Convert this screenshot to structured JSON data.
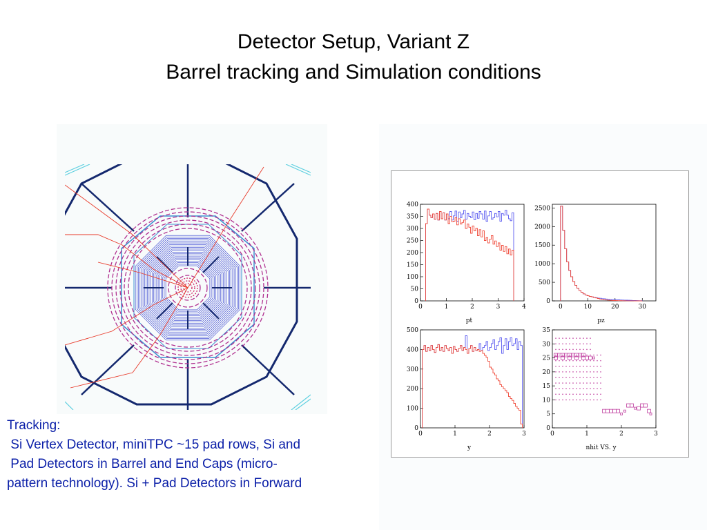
{
  "title": {
    "line1": "Detector Setup, Variant Z",
    "line2": "Barrel tracking and Simulation conditions"
  },
  "tracking_text": [
    "Tracking:",
    " Si Vertex Detector, miniTPC ~15 pad rows, Si and",
    " Pad Detectors in Barrel and End Caps (micro-",
    "pattern technology). Si + Pad Detectors in Forward"
  ],
  "colors": {
    "text_blue": "#0b1fa8",
    "series_all": "#5a5af0",
    "series_sel": "#f04a3a",
    "overlap": "#8a2a8a",
    "scatter": "#c040a0",
    "detector_frame": "#14286e",
    "detector_outer": "#3a8fd0",
    "track": "#e83a2a"
  },
  "chart_data": [
    {
      "type": "histogram",
      "xlabel": "pt",
      "xlim": [
        0,
        4
      ],
      "ylim": [
        0,
        400
      ],
      "xticks": [
        "0",
        "1",
        "2",
        "3",
        "4"
      ],
      "yticks": [
        "0",
        "50",
        "100",
        "150",
        "200",
        "250",
        "300",
        "350",
        "400"
      ],
      "x_range": [
        0.2,
        3.6
      ],
      "series": [
        {
          "values": [
            320,
            380,
            355,
            345,
            360,
            338,
            362,
            335,
            370,
            340,
            365,
            335,
            360,
            340,
            370,
            335,
            352,
            372,
            330,
            368,
            345,
            360,
            375,
            338,
            362,
            350,
            345,
            368,
            336,
            362,
            342,
            370,
            360,
            338,
            372,
            330,
            352,
            370,
            338,
            345,
            362,
            348,
            370,
            330,
            362,
            355,
            375,
            355,
            340,
            332,
            365
          ]
        },
        {
          "values": [
            320,
            380,
            355,
            345,
            360,
            338,
            362,
            335,
            370,
            340,
            365,
            335,
            360,
            320,
            350,
            328,
            330,
            345,
            315,
            340,
            318,
            325,
            335,
            300,
            318,
            305,
            280,
            310,
            290,
            300,
            270,
            295,
            265,
            290,
            250,
            262,
            240,
            255,
            270,
            235,
            248,
            225,
            240,
            210,
            230,
            205,
            225,
            195,
            215,
            190,
            210
          ]
        }
      ]
    },
    {
      "type": "histogram",
      "xlabel": "pz",
      "xlim": [
        -3,
        35
      ],
      "ylim": [
        0,
        2600
      ],
      "xticks": [
        "0",
        "10",
        "20",
        "30"
      ],
      "yticks": [
        "0",
        "500",
        "1000",
        "1500",
        "2000",
        "2500"
      ],
      "x_range": [
        0,
        30
      ],
      "series": [
        {
          "values": [
            2550,
            1900,
            1400,
            1050,
            820,
            650,
            520,
            420,
            340,
            280,
            230,
            190,
            160,
            140,
            120,
            110,
            95,
            88,
            75,
            70,
            60,
            58,
            50,
            45,
            40,
            38,
            35,
            30,
            28,
            25,
            22,
            20,
            18,
            16,
            14,
            12,
            10,
            8,
            6,
            5
          ]
        },
        {
          "values": [
            2550,
            1900,
            1400,
            1050,
            820,
            650,
            520,
            420,
            340,
            280,
            230,
            190,
            160,
            140,
            120,
            110,
            90,
            80,
            65,
            50,
            40,
            30,
            25,
            20,
            15,
            12,
            10,
            8,
            6,
            5,
            4,
            3,
            2,
            2,
            1,
            1,
            0,
            0,
            0,
            0
          ]
        }
      ]
    },
    {
      "type": "histogram",
      "xlabel": "y",
      "xlim": [
        0,
        3
      ],
      "ylim": [
        0,
        500
      ],
      "xticks": [
        "0",
        "1",
        "2",
        "3"
      ],
      "yticks": [
        "0",
        "100",
        "200",
        "300",
        "400",
        "500"
      ],
      "x_range": [
        0.05,
        2.95
      ],
      "series": [
        {
          "values": [
            400,
            420,
            390,
            410,
            395,
            420,
            400,
            385,
            410,
            425,
            395,
            410,
            390,
            420,
            405,
            395,
            410,
            380,
            415,
            400,
            390,
            405,
            420,
            395,
            410,
            470,
            380,
            405,
            420,
            390,
            410,
            395,
            400,
            430,
            395,
            410,
            420,
            440,
            395,
            410,
            430,
            450,
            400,
            420,
            440,
            460,
            380,
            420,
            455,
            400,
            440,
            460,
            420,
            430,
            455,
            400,
            440,
            420
          ]
        },
        {
          "values": [
            400,
            420,
            390,
            410,
            395,
            420,
            400,
            385,
            410,
            425,
            395,
            410,
            390,
            420,
            405,
            395,
            410,
            380,
            415,
            400,
            390,
            405,
            420,
            395,
            410,
            400,
            380,
            405,
            420,
            390,
            410,
            395,
            400,
            390,
            395,
            380,
            370,
            360,
            340,
            310,
            300,
            280,
            270,
            250,
            240,
            220,
            210,
            200,
            190,
            180,
            160,
            150,
            140,
            125,
            110,
            100,
            90,
            20
          ]
        }
      ]
    },
    {
      "type": "scatter",
      "xlabel": "nhit VS. y",
      "xlim": [
        0,
        3
      ],
      "ylim": [
        0,
        35
      ],
      "xticks": [
        "0",
        "1",
        "2",
        "3"
      ],
      "yticks": [
        "0",
        "5",
        "10",
        "15",
        "20",
        "25",
        "30",
        "35"
      ],
      "boxes": [
        {
          "x": 0.1,
          "y": 26,
          "w": 2
        },
        {
          "x": 0.2,
          "y": 26,
          "w": 2
        },
        {
          "x": 0.3,
          "y": 26,
          "w": 2
        },
        {
          "x": 0.4,
          "y": 26,
          "w": 2
        },
        {
          "x": 0.5,
          "y": 26,
          "w": 2
        },
        {
          "x": 0.6,
          "y": 26,
          "w": 2
        },
        {
          "x": 0.7,
          "y": 26,
          "w": 2
        },
        {
          "x": 0.8,
          "y": 26,
          "w": 2
        },
        {
          "x": 0.9,
          "y": 26,
          "w": 2
        },
        {
          "x": 1.0,
          "y": 25,
          "w": 2
        },
        {
          "x": 1.1,
          "y": 25,
          "w": 2
        },
        {
          "x": 1.2,
          "y": 25,
          "w": 1
        },
        {
          "x": 0.1,
          "y": 25,
          "w": 2
        },
        {
          "x": 0.3,
          "y": 25,
          "w": 2
        },
        {
          "x": 0.5,
          "y": 25,
          "w": 2
        },
        {
          "x": 0.7,
          "y": 25,
          "w": 2
        },
        {
          "x": 0.9,
          "y": 25,
          "w": 2
        },
        {
          "x": 1.5,
          "y": 6,
          "w": 2
        },
        {
          "x": 1.6,
          "y": 6,
          "w": 2
        },
        {
          "x": 1.7,
          "y": 6,
          "w": 2
        },
        {
          "x": 1.8,
          "y": 6,
          "w": 2
        },
        {
          "x": 1.9,
          "y": 6,
          "w": 2
        },
        {
          "x": 2.0,
          "y": 5,
          "w": 1
        },
        {
          "x": 2.2,
          "y": 8,
          "w": 2
        },
        {
          "x": 2.3,
          "y": 8,
          "w": 2
        },
        {
          "x": 2.5,
          "y": 7,
          "w": 2
        },
        {
          "x": 2.6,
          "y": 8,
          "w": 2
        },
        {
          "x": 2.7,
          "y": 8,
          "w": 2
        },
        {
          "x": 2.8,
          "y": 6,
          "w": 2
        },
        {
          "x": 2.85,
          "y": 5,
          "w": 1
        },
        {
          "x": 2.4,
          "y": 7,
          "w": 1
        },
        {
          "x": 2.1,
          "y": 6,
          "w": 1
        }
      ],
      "dot_grid": {
        "x_from": 0.1,
        "x_to": 1.4,
        "y_from": 10,
        "y_to": 32
      }
    }
  ]
}
